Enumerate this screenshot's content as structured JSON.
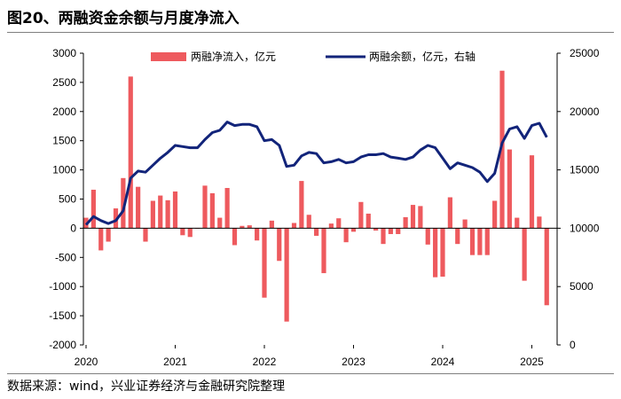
{
  "title": "图20、两融资金余额与月度净流入",
  "source": "数据来源：wind，兴业证券经济与金融研究院整理",
  "colors": {
    "bar": "#EE5A5E",
    "line": "#12247A",
    "axis": "#000000"
  },
  "chart_data": {
    "type": "bar+line",
    "title": "图20、两融资金余额与月度净流入",
    "x_ticks": [
      "2020",
      "2021",
      "2022",
      "2023",
      "2024",
      "2025"
    ],
    "left_axis": {
      "ylim": [
        -2000,
        3000
      ],
      "ticks": [
        "3000",
        "2500",
        "2000",
        "1500",
        "1000",
        "500",
        "0",
        "-500",
        "-1000",
        "-1500",
        "-2000"
      ]
    },
    "right_axis": {
      "ylim": [
        0,
        25000
      ],
      "ticks": [
        "25000",
        "20000",
        "15000",
        "10000",
        "5000",
        "0"
      ]
    },
    "legend": {
      "bar": "两融净流入，亿元",
      "line": "两融余额，亿元，右轴"
    },
    "bar_series": {
      "name": "两融净流入，亿元",
      "start": "2020-01",
      "values": [
        180,
        660,
        -380,
        -230,
        340,
        860,
        2600,
        710,
        -230,
        470,
        560,
        480,
        630,
        -120,
        -150,
        0,
        730,
        600,
        180,
        690,
        -290,
        40,
        50,
        -210,
        -1190,
        130,
        -560,
        -1600,
        90,
        810,
        230,
        -130,
        -770,
        80,
        170,
        -240,
        -60,
        450,
        250,
        -40,
        -270,
        -100,
        -100,
        190,
        400,
        380,
        -280,
        -840,
        -830,
        530,
        -270,
        150,
        -460,
        -460,
        -460,
        470,
        2700,
        1350,
        180,
        -900,
        1250,
        200,
        -1320
      ]
    },
    "line_series": {
      "name": "两融余额，亿元，右轴",
      "start": "2020-01",
      "values": [
        10300,
        11000,
        10650,
        10400,
        10650,
        11500,
        14300,
        14900,
        14800,
        15400,
        16000,
        16500,
        17100,
        17000,
        16900,
        16900,
        17600,
        18200,
        18400,
        19100,
        18800,
        18900,
        18900,
        18700,
        17500,
        17600,
        17100,
        15300,
        15400,
        16200,
        16500,
        16400,
        15600,
        15700,
        15900,
        15600,
        15700,
        16100,
        16300,
        16300,
        16400,
        16100,
        16000,
        15900,
        16100,
        16700,
        17100,
        16900,
        16000,
        15100,
        15600,
        15400,
        15200,
        14800,
        14000,
        14700,
        17300,
        18500,
        18700,
        17700,
        18800,
        19000,
        17800
      ]
    }
  }
}
